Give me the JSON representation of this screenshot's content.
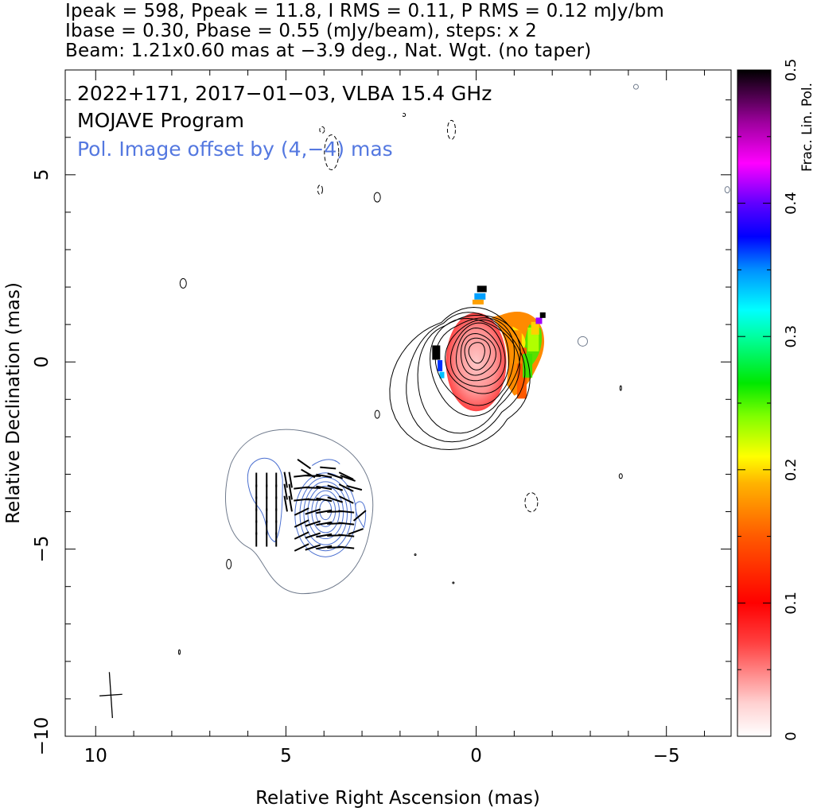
{
  "header": {
    "line1": "Ipeak = 598, Ppeak = 11.8, I RMS = 0.11, P RMS = 0.12 mJy/bm",
    "line2": "Ibase = 0.30, Pbase = 0.55 (mJy/beam), steps: x 2",
    "line3": "Beam: 1.21x0.60 mas at −3.9 deg., Nat. Wgt. (no taper)"
  },
  "chart_data": {
    "type": "contour",
    "annotations": {
      "source_line": "2022+171, 2017−01−03, VLBA 15.4 GHz",
      "program_line": "MOJAVE Program",
      "offset_line": "Pol. Image offset by (4,−4) mas"
    },
    "xlabel": "Relative Right Ascension (mas)",
    "ylabel": "Relative Declination (mas)",
    "xlim": [
      10.8,
      -6.7
    ],
    "ylim": [
      -10,
      7.8
    ],
    "xticks": [
      10,
      5,
      0,
      -5
    ],
    "xtick_labels": [
      "10",
      "5",
      "0",
      "−5"
    ],
    "yticks": [
      5,
      0,
      -5,
      -10
    ],
    "ytick_labels": [
      "5",
      "0",
      "−5",
      "−10"
    ],
    "colorbar": {
      "label": "Frac. Lin. Pol.",
      "range": [
        0,
        0.5
      ],
      "ticks": [
        0,
        0.1,
        0.2,
        0.3,
        0.4,
        0.5
      ],
      "tick_labels": [
        "0",
        "0.1",
        "0.2",
        "0.3",
        "0.4",
        "0.5"
      ]
    },
    "stokes_i": {
      "peak_mJy_per_beam": 598,
      "base_mJy_per_beam": 0.3,
      "step_factor": 2,
      "core_position": [
        0,
        0
      ],
      "contour_count": 11
    },
    "polarization": {
      "peak_mJy_per_beam": 11.8,
      "base_mJy_per_beam": 0.55,
      "image_offset": [
        4,
        -4
      ]
    },
    "beam": {
      "major_mas": 1.21,
      "minor_mas": 0.6,
      "pa_deg": -3.9,
      "position": [
        9.6,
        -8.9
      ]
    },
    "colors": {
      "stokes_i_contours": "#000000",
      "pol_contours": "#4a6fd0",
      "offset_text": "#5478e0",
      "evpa_ticks": "#000000"
    }
  }
}
